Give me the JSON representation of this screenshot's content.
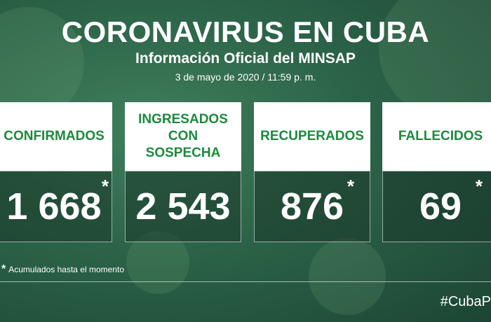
{
  "header": {
    "title": "CORONAVIRUS EN CUBA",
    "subtitle": "Información Oficial del MINSAP",
    "date": "3 de mayo de 2020 / 11:59 p. m."
  },
  "cards": [
    {
      "label": "CONFIRMADOS",
      "value": "1 668",
      "note": "*"
    },
    {
      "label": "INGRESADOS CON SOSPECHA",
      "value": "2 543"
    },
    {
      "label": "RECUPERADOS",
      "value": "876",
      "note": "*"
    },
    {
      "label": "FALLECIDOS",
      "value": "69",
      "note": "*"
    }
  ],
  "footnote": {
    "mark": "*",
    "text": "Acumulados hasta el momento"
  },
  "hashtag": "#CubaP"
}
